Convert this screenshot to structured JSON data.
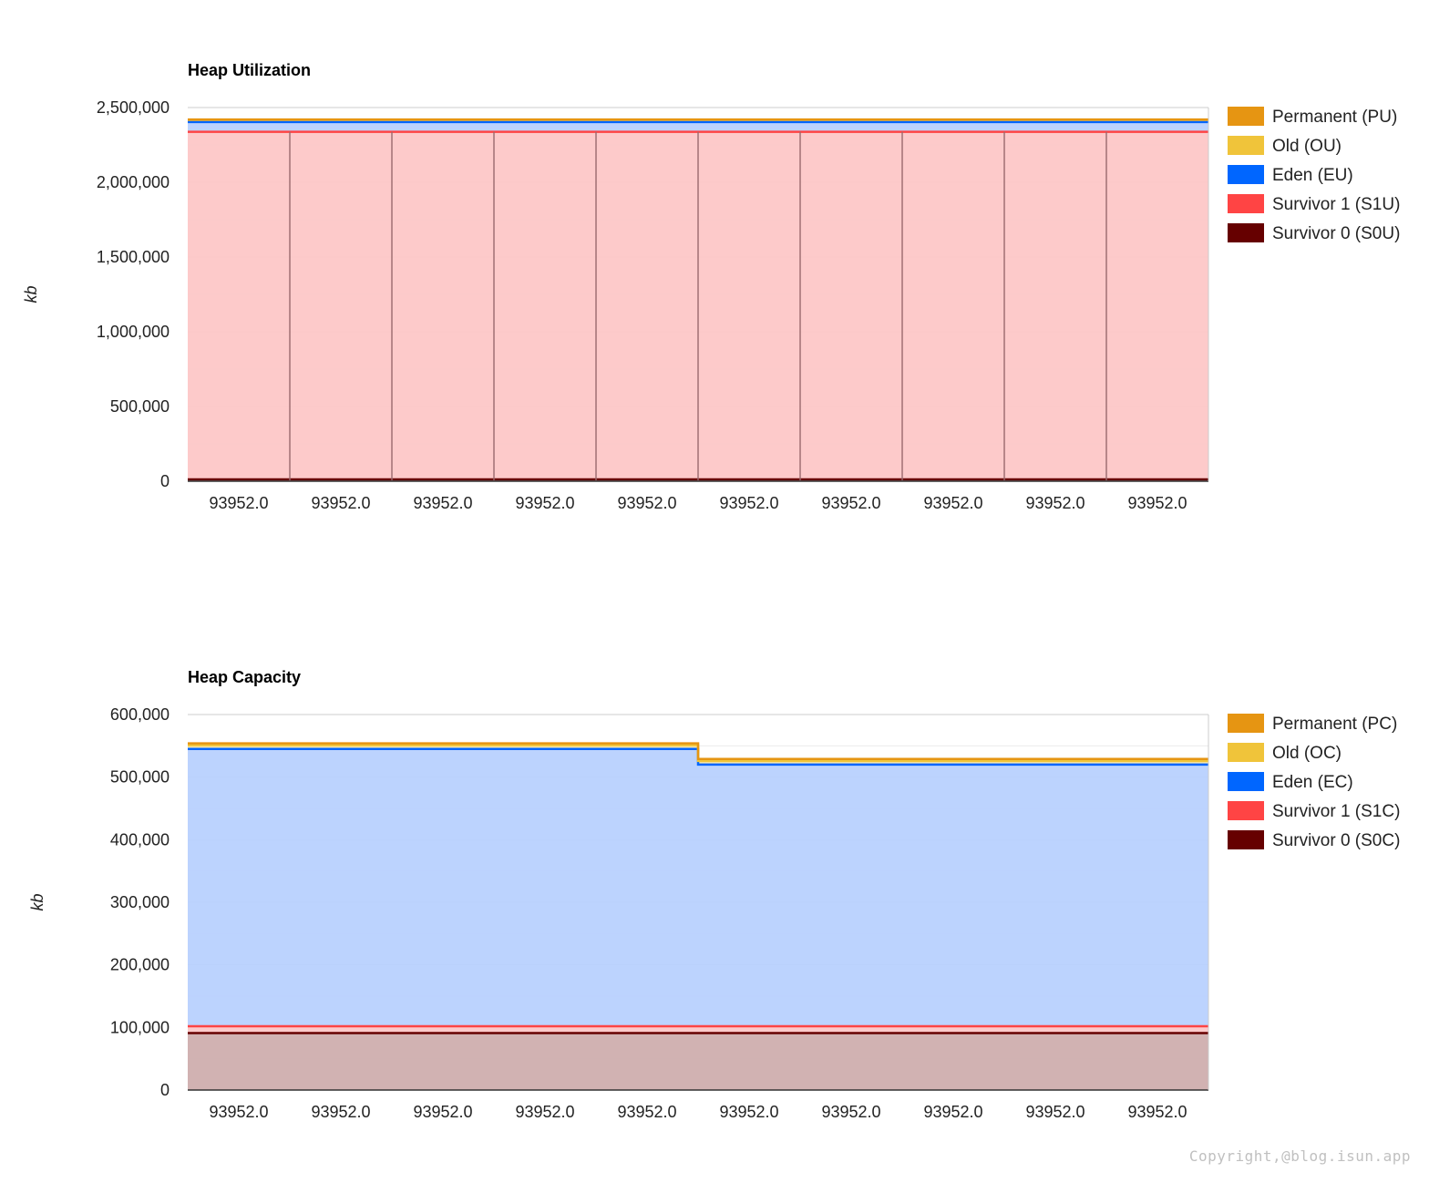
{
  "chart_data": [
    {
      "type": "area",
      "stacked": true,
      "title": "Heap Utilization",
      "xlabel": "",
      "ylabel": "kb",
      "ylim": [
        0,
        2500000
      ],
      "yticks": [
        0,
        500000,
        1000000,
        1500000,
        2000000,
        2500000
      ],
      "ytick_labels": [
        "0",
        "500,000",
        "1,000,000",
        "1,500,000",
        "2,000,000",
        "2,500,000"
      ],
      "categories": [
        "93952.0",
        "93952.0",
        "93952.0",
        "93952.0",
        "93952.0",
        "93952.0",
        "93952.0",
        "93952.0",
        "93952.0",
        "93952.0"
      ],
      "legend_position": "right",
      "grid": true,
      "series": [
        {
          "name": "Survivor 0 (S0U)",
          "color": "#660000",
          "fill": "#cfaeae",
          "values": [
            12000,
            12000,
            12000,
            12000,
            12000,
            12000,
            12000,
            12000,
            12000,
            12000
          ]
        },
        {
          "name": "Survivor 1 (S1U)",
          "color": "#ff4444",
          "fill": "#fdc7c7",
          "values": [
            2326000,
            2326000,
            2326000,
            2326000,
            2326000,
            2326000,
            2326000,
            2326000,
            2326000,
            2326000
          ]
        },
        {
          "name": "Eden (EU)",
          "color": "#0066ff",
          "fill": "#b8d1fe",
          "values": [
            65000,
            65000,
            65000,
            65000,
            65000,
            65000,
            65000,
            65000,
            65000,
            65000
          ]
        },
        {
          "name": "Old (OU)",
          "color": "#f0c43a",
          "fill": "#f7e6a8",
          "values": [
            15000,
            15000,
            15000,
            15000,
            15000,
            15000,
            15000,
            15000,
            15000,
            15000
          ]
        },
        {
          "name": "Permanent (PU)",
          "color": "#e69512",
          "fill": "#f3cc8f",
          "values": [
            2000,
            2000,
            2000,
            2000,
            2000,
            2000,
            2000,
            2000,
            2000,
            2000
          ]
        }
      ],
      "legend_order": [
        "Permanent (PU)",
        "Old (OU)",
        "Eden (EU)",
        "Survivor 1 (S1U)",
        "Survivor 0 (S0U)"
      ]
    },
    {
      "type": "area",
      "stacked": true,
      "title": "Heap Capacity",
      "xlabel": "",
      "ylabel": "kb",
      "ylim": [
        0,
        600000
      ],
      "yticks": [
        0,
        100000,
        200000,
        300000,
        400000,
        500000,
        600000
      ],
      "ytick_labels": [
        "0",
        "100,000",
        "200,000",
        "300,000",
        "400,000",
        "500,000",
        "600,000"
      ],
      "categories": [
        "93952.0",
        "93952.0",
        "93952.0",
        "93952.0",
        "93952.0",
        "93952.0",
        "93952.0",
        "93952.0",
        "93952.0",
        "93952.0"
      ],
      "legend_position": "right",
      "grid": true,
      "series": [
        {
          "name": "Survivor 0 (S0C)",
          "color": "#660000",
          "fill": "#cfaeae",
          "values": [
            91000,
            91000,
            91000,
            91000,
            91000,
            91000,
            91000,
            91000,
            91000,
            91000
          ]
        },
        {
          "name": "Survivor 1 (S1C)",
          "color": "#ff4444",
          "fill": "#fdc7c7",
          "values": [
            11000,
            11000,
            11000,
            11000,
            11000,
            11000,
            11000,
            11000,
            11000,
            11000
          ]
        },
        {
          "name": "Eden (EC)",
          "color": "#0066ff",
          "fill": "#b8d1fe",
          "values": [
            443000,
            443000,
            443000,
            443000,
            443000,
            418000,
            418000,
            418000,
            418000,
            418000
          ]
        },
        {
          "name": "Old (OC)",
          "color": "#f0c43a",
          "fill": "#f7e6a8",
          "values": [
            6000,
            6000,
            6000,
            6000,
            6000,
            6000,
            6000,
            6000,
            6000,
            6000
          ]
        },
        {
          "name": "Permanent (PC)",
          "color": "#e69512",
          "fill": "#f3cc8f",
          "values": [
            3000,
            3000,
            3000,
            3000,
            3000,
            3000,
            3000,
            3000,
            3000,
            3000
          ]
        }
      ],
      "legend_order": [
        "Permanent (PC)",
        "Old (OC)",
        "Eden (EC)",
        "Survivor 1 (S1C)",
        "Survivor 0 (S0C)"
      ]
    }
  ],
  "footer": {
    "copyright": "Copyright,@blog.isun.app"
  }
}
